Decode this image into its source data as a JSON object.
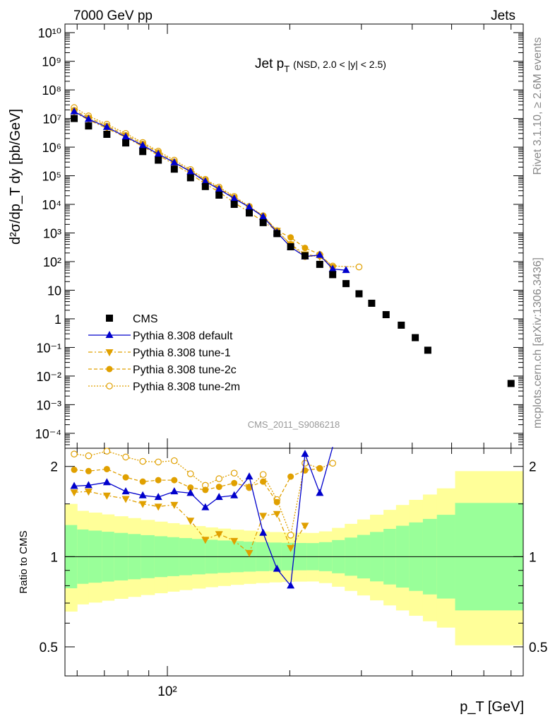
{
  "header": {
    "left": "7000 GeV pp",
    "right": "Jets"
  },
  "side_labels": {
    "rivet": "Rivet 3.1.10, ≥ 2.6M events",
    "mcplots": "mcplots.cern.ch [arXiv:1306.3436]"
  },
  "plot_title_main": "Jet p",
  "plot_title_sub": "T",
  "plot_title_detail": "(NSD, 2.0 < |y| < 2.5)",
  "watermark": "CMS_2011_S9086218",
  "ylabel_top": "d²σ/dp_T dy [pb/GeV]",
  "ylabel_bottom": "Ratio to CMS",
  "xlabel": "p_T [GeV]",
  "colors": {
    "cms": "#000000",
    "default": "#0000cc",
    "tunes": "#e0a000",
    "band_inner": "#99ff99",
    "band_outer": "#ffff99"
  },
  "chart_data": [
    {
      "type": "scatter",
      "xscale": "log",
      "yscale": "log",
      "xlim": [
        56,
        750
      ],
      "ylim": [
        3e-05,
        20000000000
      ],
      "y_ticks": [
        "10⁻⁴",
        "10⁻³",
        "10⁻²",
        "10⁻¹",
        "1",
        "10",
        "10²",
        "10³",
        "10⁴",
        "10⁵",
        "10⁶",
        "10⁷",
        "10⁸",
        "10⁹",
        "10¹⁰"
      ],
      "legend_position": "bottom-left",
      "series": [
        {
          "name": "CMS",
          "marker": "filled-square",
          "x": [
            59,
            64,
            71,
            79,
            87,
            95,
            104,
            114,
            124,
            134,
            146,
            159,
            172,
            186,
            201,
            218,
            237,
            255,
            275,
            296,
            318,
            345,
            376,
            407,
            437,
            468,
            503,
            538,
            574,
            625,
            700
          ],
          "y": [
            10000000,
            5500000,
            2800000,
            1400000,
            700000,
            350000,
            170000,
            85000,
            42000,
            21000,
            10000,
            5000,
            2300,
            950,
            330,
            160,
            80,
            35,
            17,
            7.5,
            3.5,
            1.4,
            0.6,
            0.22,
            0.08,
            null,
            null,
            null,
            null,
            null,
            0.0055
          ]
        },
        {
          "name": "Pythia 8.308 default",
          "marker": "filled-triangle-up",
          "x": [
            59,
            64,
            71,
            79,
            87,
            95,
            104,
            114,
            124,
            134,
            146,
            159,
            172,
            186,
            201,
            218,
            237,
            255,
            275
          ],
          "y": [
            17500000,
            9500000,
            5000000,
            2300000,
            1150000,
            570000,
            290000,
            140000,
            63000,
            34000,
            16000,
            8000,
            3700,
            1050,
            320,
            150,
            170,
            55,
            50
          ]
        },
        {
          "name": "Pythia 8.308 tune-1",
          "marker": "filled-triangle-down",
          "x": [
            59,
            64,
            71,
            79,
            87,
            95,
            104,
            114,
            124,
            134,
            146,
            159,
            172,
            186,
            201,
            218,
            237,
            255
          ],
          "y": [
            16500000,
            9000000,
            4500000,
            2200000,
            1050000,
            520000,
            250000,
            115000,
            52000,
            27000,
            11500,
            5300,
            2500,
            1200,
            400,
            180,
            150,
            60
          ]
        },
        {
          "name": "Pythia 8.308 tune-2c",
          "marker": "filled-circle",
          "x": [
            59,
            64,
            71,
            79,
            87,
            95,
            104,
            114,
            124,
            134,
            146,
            159,
            172,
            186,
            201,
            218,
            237,
            255
          ],
          "y": [
            19500000,
            10700000,
            5500000,
            2600000,
            1300000,
            650000,
            310000,
            145000,
            70000,
            36000,
            17500,
            8000,
            4000,
            1200,
            700,
            300,
            180,
            65
          ]
        },
        {
          "name": "Pythia 8.308 tune-2m",
          "marker": "open-circle",
          "x": [
            59,
            64,
            71,
            79,
            87,
            95,
            104,
            114,
            124,
            134,
            146,
            159,
            172,
            186,
            201,
            218,
            237,
            255,
            296
          ],
          "y": [
            24000000,
            12300000,
            6300000,
            3000000,
            1450000,
            720000,
            350000,
            165000,
            75000,
            40000,
            19000,
            8500,
            4000,
            1200,
            400,
            150,
            160,
            70,
            65
          ]
        }
      ]
    },
    {
      "type": "line",
      "xscale": "log",
      "yscale": "log",
      "ylim": [
        0.4,
        2.3
      ],
      "y_ticks": [
        "0.5",
        "1",
        "2"
      ],
      "x_ticks": [
        "10²"
      ],
      "reference_line": 1,
      "series": [
        {
          "name": "Pythia 8.308 default",
          "x": [
            59,
            64,
            71,
            79,
            87,
            95,
            104,
            114,
            124,
            134,
            146,
            159,
            172,
            186,
            201,
            218,
            237,
            255
          ],
          "y": [
            1.72,
            1.73,
            1.77,
            1.65,
            1.6,
            1.58,
            1.65,
            1.63,
            1.46,
            1.58,
            1.6,
            1.85,
            1.2,
            0.91,
            0.8,
            2.2,
            1.63,
            2.5
          ]
        },
        {
          "name": "Pythia 8.308 tune-1",
          "x": [
            59,
            64,
            71,
            79,
            87,
            95,
            104,
            114,
            124,
            134,
            146,
            159,
            172,
            186,
            201,
            218
          ],
          "y": [
            1.64,
            1.65,
            1.6,
            1.56,
            1.5,
            1.47,
            1.49,
            1.32,
            1.14,
            1.19,
            1.13,
            1.03,
            1.37,
            1.39,
            1.07,
            1.27
          ]
        },
        {
          "name": "Pythia 8.308 tune-2c",
          "x": [
            59,
            64,
            71,
            79,
            87,
            95,
            104,
            114,
            124,
            134,
            146,
            159,
            172,
            186,
            201,
            218,
            237
          ],
          "y": [
            1.95,
            1.93,
            1.96,
            1.84,
            1.78,
            1.8,
            1.8,
            1.7,
            1.67,
            1.71,
            1.76,
            1.71,
            1.78,
            1.52,
            1.85,
            1.94,
            1.97
          ]
        },
        {
          "name": "Pythia 8.308 tune-2m",
          "x": [
            59,
            64,
            71,
            79,
            87,
            95,
            104,
            114,
            124,
            134,
            146,
            159,
            172,
            186,
            201,
            218,
            237,
            255
          ],
          "y": [
            2.2,
            2.17,
            2.25,
            2.15,
            2.08,
            2.07,
            2.09,
            1.89,
            1.73,
            1.82,
            1.9,
            1.7,
            1.88,
            1.55,
            1.18,
            2.05,
            1.97,
            2.05
          ]
        }
      ]
    }
  ]
}
